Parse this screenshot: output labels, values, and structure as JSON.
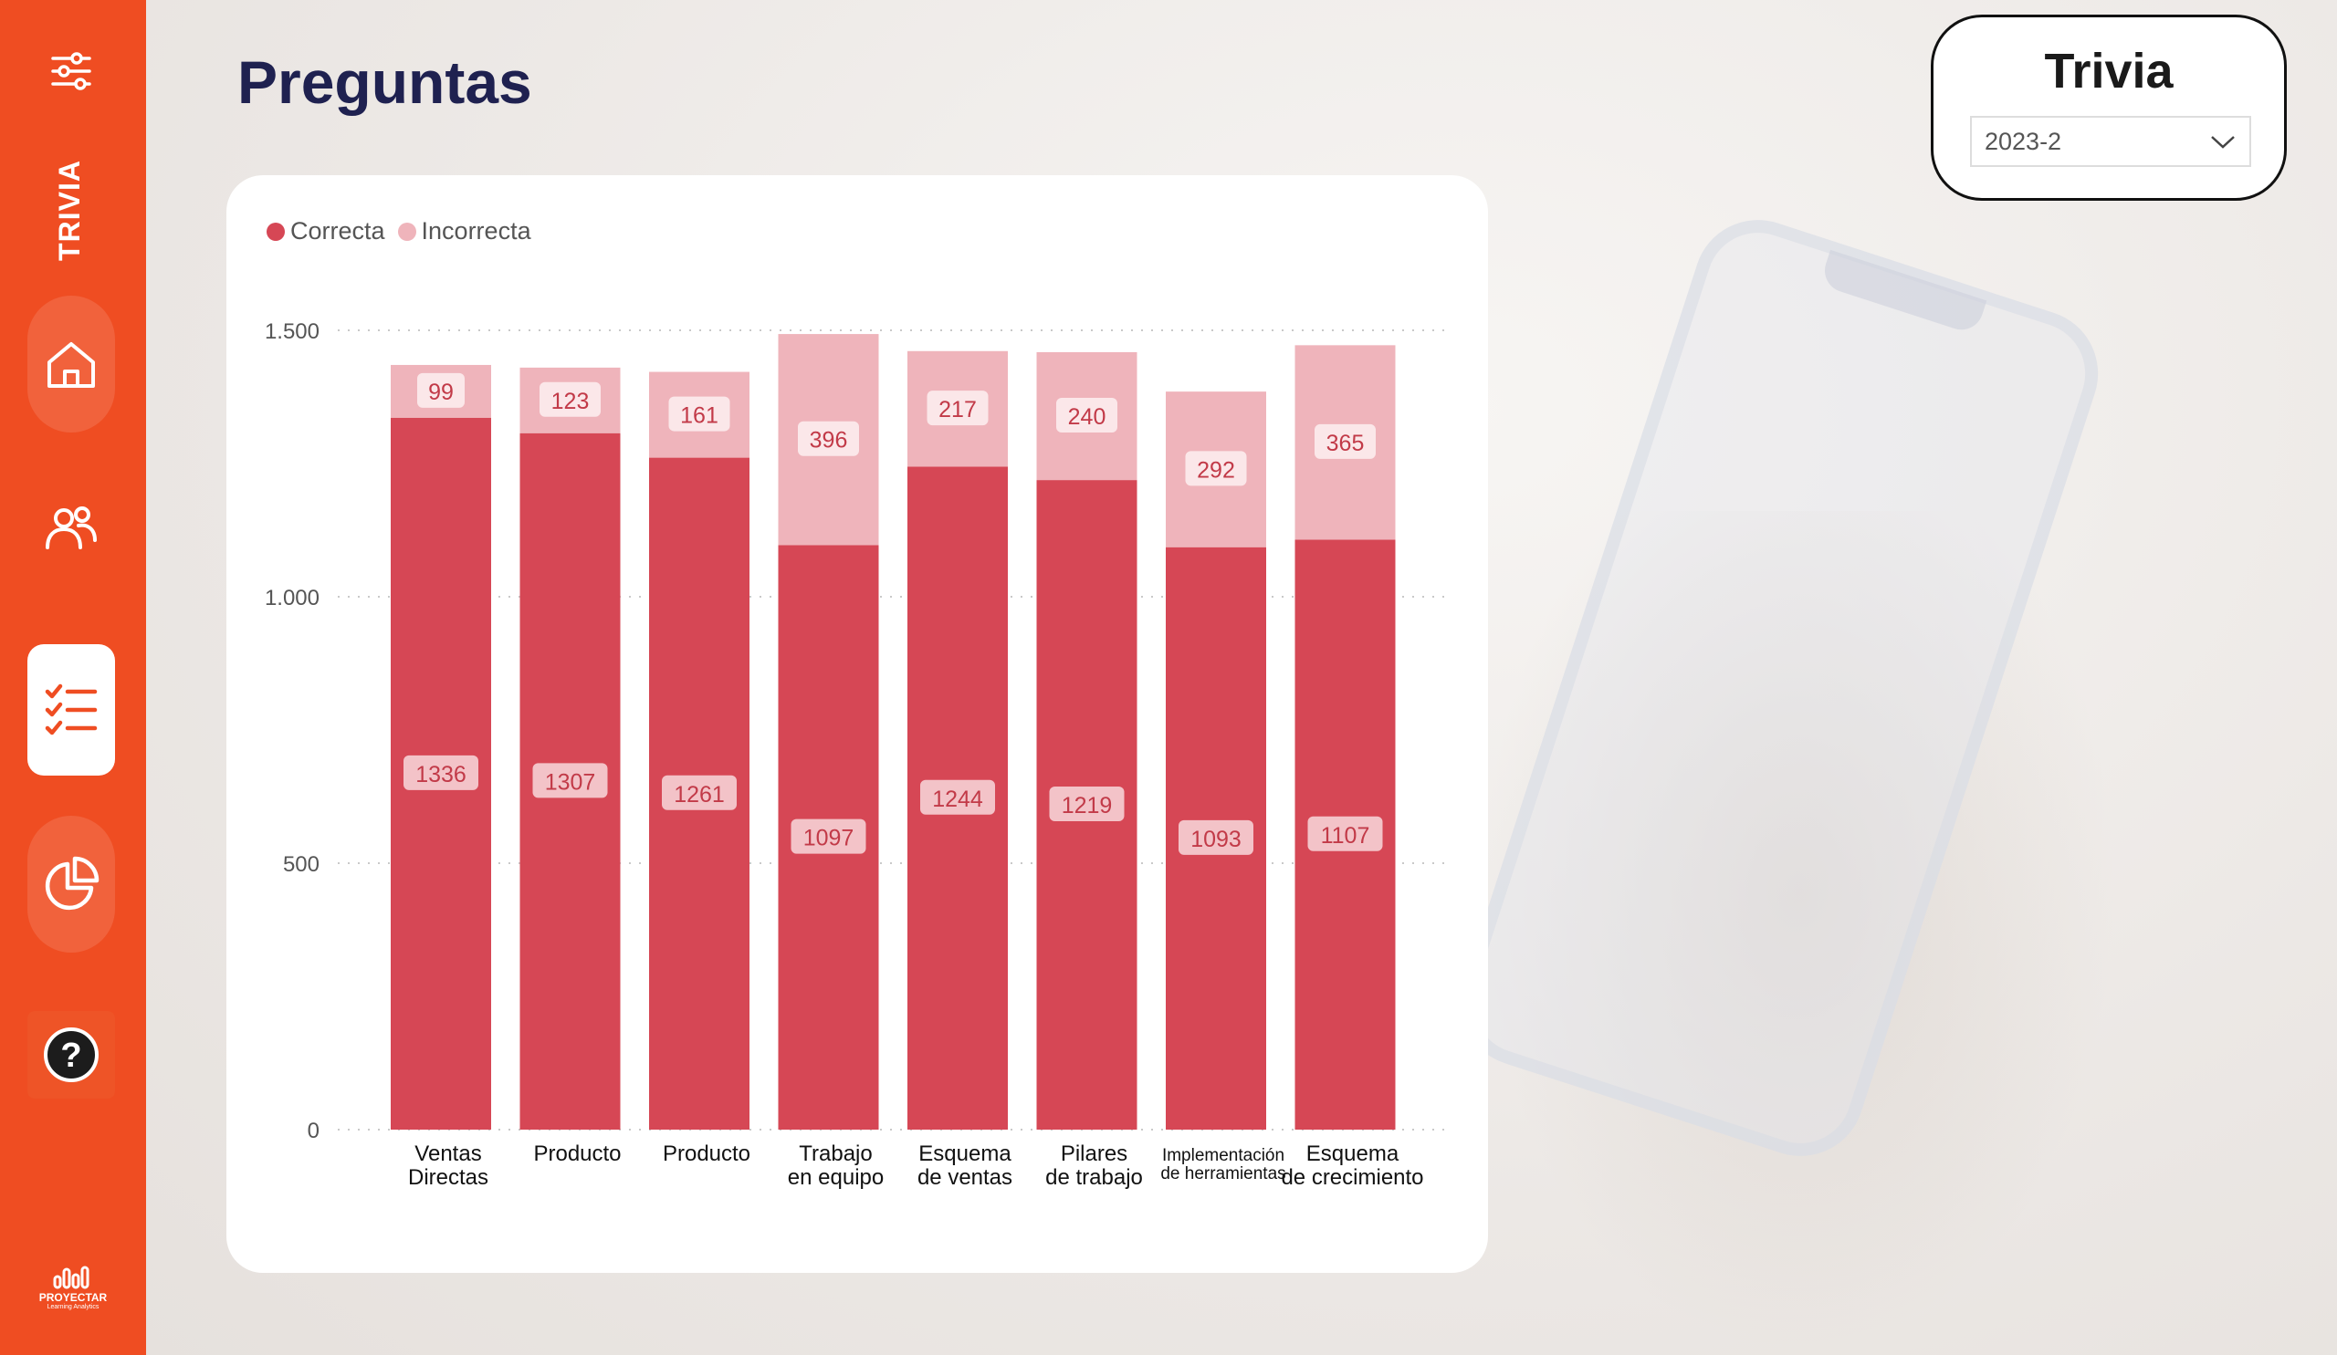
{
  "sidebar": {
    "section_label": "TRIVIA",
    "items": [
      {
        "icon": "sliders-icon"
      },
      {
        "icon": "home-icon"
      },
      {
        "icon": "users-icon"
      },
      {
        "icon": "checklist-icon",
        "active": true
      },
      {
        "icon": "pie-chart-icon"
      },
      {
        "icon": "help-icon"
      }
    ],
    "logo_name": "PROYECTAR",
    "logo_tagline": "Learning Analytics"
  },
  "page": {
    "title": "Preguntas"
  },
  "slicer": {
    "title": "Trivia",
    "selected": "2023-2"
  },
  "colors": {
    "sidebar": "#ef4d22",
    "title": "#1f2150",
    "correcta": "#d64755",
    "incorrecta": "#efb4bb"
  },
  "chart_data": {
    "type": "bar",
    "stacked": true,
    "categories": [
      "Ventas Directas",
      "Producto",
      "Producto",
      "Trabajo en equipo",
      "Esquema de ventas",
      "Pilares de trabajo",
      "Implementación de herramientas",
      "Esquema de crecimiento"
    ],
    "series": [
      {
        "name": "Correcta",
        "color": "#d64755",
        "values": [
          1336,
          1307,
          1261,
          1097,
          1244,
          1219,
          1093,
          1107
        ]
      },
      {
        "name": "Incorrecta",
        "color": "#efb4bb",
        "values": [
          99,
          123,
          161,
          396,
          217,
          240,
          292,
          365
        ]
      }
    ],
    "ylim": [
      0,
      1500
    ],
    "yticks": [
      0,
      500,
      1000,
      1500
    ],
    "ytick_labels": [
      "0",
      "500",
      "1.000",
      "1.500"
    ],
    "grid": true,
    "legend": "top-left",
    "xlabel": "",
    "ylabel": ""
  }
}
